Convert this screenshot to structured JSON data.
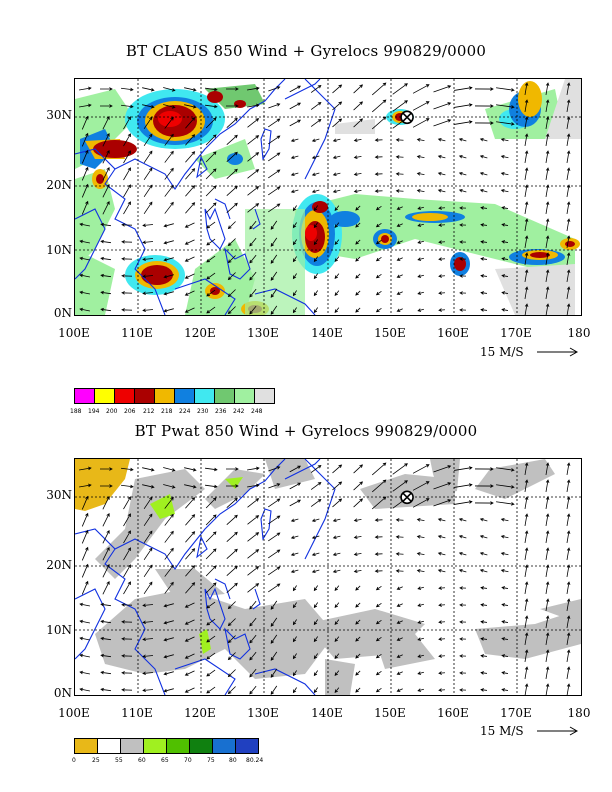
{
  "panels": [
    {
      "title": "BT CLAUS 850 Wind + Gyrelocs 990829/0000",
      "lat_labels": [
        "30N",
        "20N",
        "10N",
        "0N"
      ],
      "lon_labels": [
        "100E",
        "110E",
        "120E",
        "130E",
        "140E",
        "150E",
        "160E",
        "170E",
        "180"
      ],
      "scale_label": "15 M/S",
      "colorbar": {
        "colors": [
          "#ff00ff",
          "#ffff00",
          "#ee0000",
          "#aa0000",
          "#f0b800",
          "#1080e0",
          "#40e8f0",
          "#70c870",
          "#a0f0a0",
          "#e0e0e0"
        ],
        "labels": [
          "188",
          "194",
          "200",
          "206",
          "212",
          "218",
          "224",
          "230",
          "236",
          "242",
          "248"
        ]
      }
    },
    {
      "title": "BT Pwat 850 Wind + Gyrelocs 990829/0000",
      "lat_labels": [
        "30N",
        "20N",
        "10N",
        "0N"
      ],
      "lon_labels": [
        "100E",
        "110E",
        "120E",
        "130E",
        "140E",
        "150E",
        "160E",
        "170E",
        "180"
      ],
      "scale_label": "15 M/S",
      "colorbar": {
        "colors": [
          "#e8b818",
          "#ffffff",
          "#c0c0c0",
          "#a0f020",
          "#50c000",
          "#108010",
          "#1870d0",
          "#2040c0",
          "#8000c0"
        ],
        "labels": [
          "0",
          "25",
          "55",
          "60",
          "65",
          "70",
          "75",
          "80",
          "80.24"
        ]
      }
    }
  ],
  "gyre_marker": {
    "lon": 152.5,
    "lat": 31.0
  }
}
